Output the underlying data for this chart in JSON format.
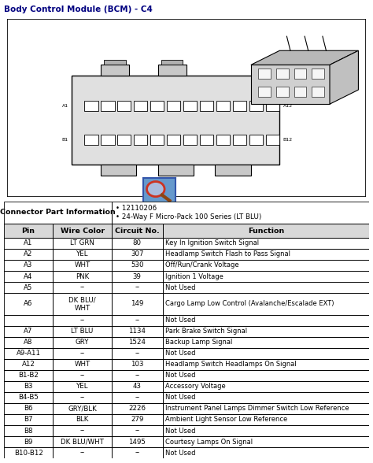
{
  "title": "Body Control Module (BCM) - C4",
  "title_color": "#000080",
  "connector_info_left": "Connector Part Information",
  "connector_info_bullets": "• 12110206\n• 24-Way F Micro-Pack 100 Series (LT BLU)",
  "col_headers": [
    "Pin",
    "Wire Color",
    "Circuit No.",
    "Function"
  ],
  "rows": [
    [
      "A1",
      "LT GRN",
      "80",
      "Key In Ignition Switch Signal"
    ],
    [
      "A2",
      "YEL",
      "307",
      "Headlamp Switch Flash to Pass Signal"
    ],
    [
      "A3",
      "WHT",
      "530",
      "Off/Run/Crank Voltage"
    ],
    [
      "A4",
      "PNK",
      "39",
      "Ignition 1 Voltage"
    ],
    [
      "A5",
      "--",
      "--",
      "Not Used"
    ],
    [
      "A6",
      "DK BLU/\nWHT",
      "149",
      "Cargo Lamp Low Control (Avalanche/Escalade EXT)"
    ],
    [
      "",
      "--",
      "--",
      "Not Used"
    ],
    [
      "A7",
      "LT BLU",
      "1134",
      "Park Brake Switch Signal"
    ],
    [
      "A8",
      "GRY",
      "1524",
      "Backup Lamp Signal"
    ],
    [
      "A9-A11",
      "--",
      "--",
      "Not Used"
    ],
    [
      "A12",
      "WHT",
      "103",
      "Headlamp Switch Headlamps On Signal"
    ],
    [
      "B1-B2",
      "--",
      "--",
      "Not Used"
    ],
    [
      "B3",
      "YEL",
      "43",
      "Accessory Voltage"
    ],
    [
      "B4-B5",
      "--",
      "--",
      "Not Used"
    ],
    [
      "B6",
      "GRY/BLK",
      "2226",
      "Instrument Panel Lamps Dimmer Switch Low Reference"
    ],
    [
      "B7",
      "BLK",
      "279",
      "Ambient Light Sensor Low Reference"
    ],
    [
      "B8",
      "--",
      "--",
      "Not Used"
    ],
    [
      "B9",
      "DK BLU/WHT",
      "1495",
      "Courtesy Lamps On Signal"
    ],
    [
      "B10-B12",
      "--",
      "--",
      "Not Used"
    ]
  ],
  "bg_color": "#ffffff",
  "fig_width": 4.74,
  "fig_height": 5.88,
  "dpi": 100
}
